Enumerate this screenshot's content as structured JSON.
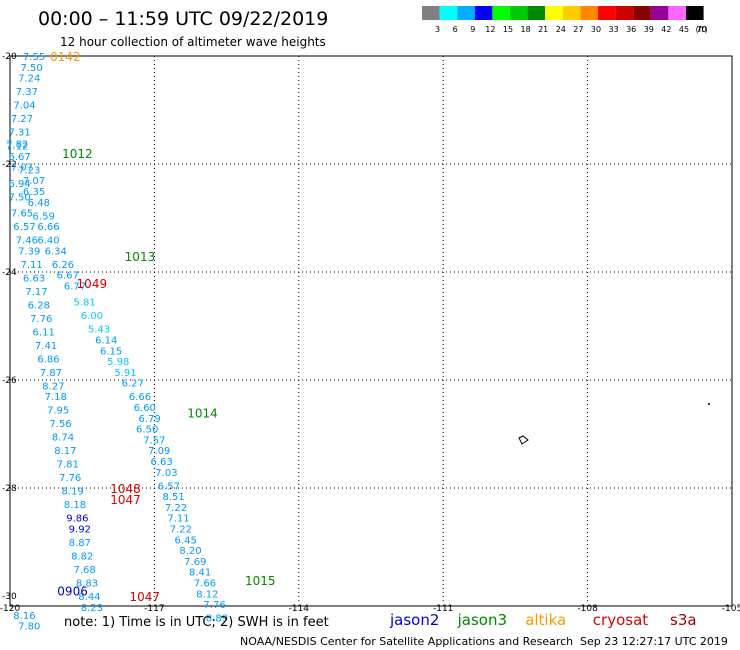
{
  "title": "00:00 – 11:59 UTC 09/22/2019",
  "subtitle": "12 hour collection of altimeter wave heights",
  "footer": {
    "note": "note:  1) Time is in UTC;  2) SWH is in feet",
    "credit": "NOAA/NESDIS Center for Satellite Applications and Research",
    "timestamp": "Sep 23 12:27:17 UTC 2019"
  },
  "colorbar": {
    "unit": "(ft)",
    "bins": [
      {
        "label": "3",
        "color": "#808080"
      },
      {
        "label": "6",
        "color": "#00ffff"
      },
      {
        "label": "9",
        "color": "#00b0ff"
      },
      {
        "label": "12",
        "color": "#0000ff"
      },
      {
        "label": "15",
        "color": "#00ff00"
      },
      {
        "label": "18",
        "color": "#00cc00"
      },
      {
        "label": "21",
        "color": "#008800"
      },
      {
        "label": "24",
        "color": "#ffff00"
      },
      {
        "label": "27",
        "color": "#ffcc00"
      },
      {
        "label": "30",
        "color": "#ff8800"
      },
      {
        "label": "33",
        "color": "#ff0000"
      },
      {
        "label": "36",
        "color": "#cc0000"
      },
      {
        "label": "39",
        "color": "#880000"
      },
      {
        "label": "42",
        "color": "#990099"
      },
      {
        "label": "45",
        "color": "#ff66ff"
      },
      {
        "label": "70",
        "color": "#000000"
      }
    ]
  },
  "satellites": [
    {
      "name": "jason2",
      "color": "#0000dd"
    },
    {
      "name": "jason3",
      "color": "#008800"
    },
    {
      "name": "altika",
      "color": "#ff9900"
    },
    {
      "name": "cryosat",
      "color": "#dd0000"
    },
    {
      "name": "s3a",
      "color": "#990000"
    }
  ],
  "map": {
    "lon_range": [
      -120,
      -105
    ],
    "lat_range": [
      -30,
      -20
    ],
    "lon_ticks": [
      "-120",
      "-117",
      "-114",
      "-111",
      "-108",
      "-105"
    ],
    "lat_ticks": [
      "-20",
      "-22",
      "-24",
      "-26",
      "-28",
      "-30"
    ],
    "gridlines": "dotted"
  },
  "pass_times": [
    {
      "time": "0142",
      "lon": -118.85,
      "lat": -20.0,
      "color": "#ff9900"
    },
    {
      "time": "1012",
      "lon": -118.6,
      "lat": -21.8,
      "color": "#008800"
    },
    {
      "time": "1013",
      "lon": -117.3,
      "lat": -23.7,
      "color": "#008800"
    },
    {
      "time": "1049",
      "lon": -118.3,
      "lat": -24.2,
      "color": "#dd0000"
    },
    {
      "time": "1014",
      "lon": -116.0,
      "lat": -26.6,
      "color": "#008800"
    },
    {
      "time": "1048",
      "lon": -117.6,
      "lat": -28.0,
      "color": "#dd0000"
    },
    {
      "time": "1047",
      "lon": -117.6,
      "lat": -28.2,
      "color": "#dd0000"
    },
    {
      "time": "1015",
      "lon": -114.8,
      "lat": -29.7,
      "color": "#008800"
    },
    {
      "time": "0906",
      "lon": -118.7,
      "lat": -29.9,
      "color": "#0000dd"
    },
    {
      "time": "1047",
      "lon": -117.2,
      "lat": -30.0,
      "color": "#dd0000"
    }
  ],
  "observations": [
    {
      "v": "7.55",
      "lon": -119.5,
      "lat": -20.0,
      "c": "#0099ff"
    },
    {
      "v": "7.50",
      "lon": -119.55,
      "lat": -20.2,
      "c": "#0099ff"
    },
    {
      "v": "7.24",
      "lon": -119.6,
      "lat": -20.4,
      "c": "#0099ff"
    },
    {
      "v": "7.37",
      "lon": -119.65,
      "lat": -20.65,
      "c": "#0099ff"
    },
    {
      "v": "7.04",
      "lon": -119.7,
      "lat": -20.9,
      "c": "#0099ff"
    },
    {
      "v": "7.27",
      "lon": -119.75,
      "lat": -21.15,
      "c": "#0099ff"
    },
    {
      "v": "7.31",
      "lon": -119.8,
      "lat": -21.4,
      "c": "#0099ff"
    },
    {
      "v": "7.82",
      "lon": -119.85,
      "lat": -21.62,
      "c": "#0099ff"
    },
    {
      "v": "7.12",
      "lon": -119.85,
      "lat": -21.66,
      "c": "#0099ff"
    },
    {
      "v": "6.67",
      "lon": -119.8,
      "lat": -21.85,
      "c": "#0099ff"
    },
    {
      "v": "7.07",
      "lon": -119.75,
      "lat": -22.05,
      "c": "#0099ff"
    },
    {
      "v": "7.23",
      "lon": -119.6,
      "lat": -22.1,
      "c": "#0099ff"
    },
    {
      "v": "7.07",
      "lon": -119.5,
      "lat": -22.3,
      "c": "#0099ff"
    },
    {
      "v": "6.94",
      "lon": -119.8,
      "lat": -22.35,
      "c": "#0099ff"
    },
    {
      "v": "6.35",
      "lon": -119.5,
      "lat": -22.5,
      "c": "#0099ff"
    },
    {
      "v": "7.50",
      "lon": -119.8,
      "lat": -22.6,
      "c": "#0099ff"
    },
    {
      "v": "6.48",
      "lon": -119.4,
      "lat": -22.7,
      "c": "#0099ff"
    },
    {
      "v": "7.65",
      "lon": -119.75,
      "lat": -22.9,
      "c": "#0099ff"
    },
    {
      "v": "6.59",
      "lon": -119.3,
      "lat": -22.95,
      "c": "#0099ff"
    },
    {
      "v": "6.57",
      "lon": -119.7,
      "lat": -23.15,
      "c": "#0099ff"
    },
    {
      "v": "6.66",
      "lon": -119.2,
      "lat": -23.15,
      "c": "#0099ff"
    },
    {
      "v": "7.46",
      "lon": -119.65,
      "lat": -23.4,
      "c": "#0099ff"
    },
    {
      "v": "6.40",
      "lon": -119.2,
      "lat": -23.4,
      "c": "#0099ff"
    },
    {
      "v": "7.39",
      "lon": -119.6,
      "lat": -23.6,
      "c": "#0099ff"
    },
    {
      "v": "6.34",
      "lon": -119.05,
      "lat": -23.6,
      "c": "#0099ff"
    },
    {
      "v": "7.11",
      "lon": -119.55,
      "lat": -23.85,
      "c": "#0099ff"
    },
    {
      "v": "6.26",
      "lon": -118.9,
      "lat": -23.85,
      "c": "#0099ff"
    },
    {
      "v": "6.63",
      "lon": -119.5,
      "lat": -24.1,
      "c": "#0099ff"
    },
    {
      "v": "6.67",
      "lon": -118.8,
      "lat": -24.05,
      "c": "#0099ff"
    },
    {
      "v": "6.77",
      "lon": -118.65,
      "lat": -24.25,
      "c": "#0099ff"
    },
    {
      "v": "7.17",
      "lon": -119.45,
      "lat": -24.35,
      "c": "#0099ff"
    },
    {
      "v": "6.28",
      "lon": -119.4,
      "lat": -24.6,
      "c": "#0099ff"
    },
    {
      "v": "5.81",
      "lon": -118.45,
      "lat": -24.55,
      "c": "#00ccff"
    },
    {
      "v": "7.76",
      "lon": -119.35,
      "lat": -24.85,
      "c": "#0099ff"
    },
    {
      "v": "6.00",
      "lon": -118.3,
      "lat": -24.8,
      "c": "#00ccff"
    },
    {
      "v": "6.11",
      "lon": -119.3,
      "lat": -25.1,
      "c": "#0099ff"
    },
    {
      "v": "5.43",
      "lon": -118.15,
      "lat": -25.05,
      "c": "#00ccff"
    },
    {
      "v": "7.41",
      "lon": -119.25,
      "lat": -25.35,
      "c": "#0099ff"
    },
    {
      "v": "6.14",
      "lon": -118.0,
      "lat": -25.25,
      "c": "#0099ff"
    },
    {
      "v": "6.86",
      "lon": -119.2,
      "lat": -25.6,
      "c": "#0099ff"
    },
    {
      "v": "6.15",
      "lon": -117.9,
      "lat": -25.45,
      "c": "#0099ff"
    },
    {
      "v": "7.87",
      "lon": -119.15,
      "lat": -25.85,
      "c": "#0099ff"
    },
    {
      "v": "5.98",
      "lon": -117.75,
      "lat": -25.65,
      "c": "#00ccff"
    },
    {
      "v": "5.91",
      "lon": -117.6,
      "lat": -25.85,
      "c": "#00ccff"
    },
    {
      "v": "8.27",
      "lon": -119.1,
      "lat": -26.1,
      "c": "#0099ff"
    },
    {
      "v": "6.27",
      "lon": -117.45,
      "lat": -26.05,
      "c": "#0099ff"
    },
    {
      "v": "7.18",
      "lon": -119.05,
      "lat": -26.3,
      "c": "#0099ff"
    },
    {
      "v": "6.66",
      "lon": -117.3,
      "lat": -26.3,
      "c": "#0099ff"
    },
    {
      "v": "7.95",
      "lon": -119.0,
      "lat": -26.55,
      "c": "#0099ff"
    },
    {
      "v": "6.60",
      "lon": -117.2,
      "lat": -26.5,
      "c": "#0099ff"
    },
    {
      "v": "7.56",
      "lon": -118.95,
      "lat": -26.8,
      "c": "#0099ff"
    },
    {
      "v": "6.79",
      "lon": -117.1,
      "lat": -26.7,
      "c": "#0099ff"
    },
    {
      "v": "6.50",
      "lon": -117.15,
      "lat": -26.9,
      "c": "#0099ff"
    },
    {
      "v": "8.74",
      "lon": -118.9,
      "lat": -27.05,
      "c": "#0099ff"
    },
    {
      "v": "7.57",
      "lon": -117.0,
      "lat": -27.1,
      "c": "#0099ff"
    },
    {
      "v": "8.17",
      "lon": -118.85,
      "lat": -27.3,
      "c": "#0099ff"
    },
    {
      "v": "7.09",
      "lon": -116.9,
      "lat": -27.3,
      "c": "#0099ff"
    },
    {
      "v": "7.81",
      "lon": -118.8,
      "lat": -27.55,
      "c": "#0099ff"
    },
    {
      "v": "6.63",
      "lon": -116.85,
      "lat": -27.5,
      "c": "#0099ff"
    },
    {
      "v": "7.76",
      "lon": -118.75,
      "lat": -27.8,
      "c": "#0099ff"
    },
    {
      "v": "7.03",
      "lon": -116.75,
      "lat": -27.7,
      "c": "#0099ff"
    },
    {
      "v": "8.19",
      "lon": -118.7,
      "lat": -28.05,
      "c": "#0099ff"
    },
    {
      "v": "6.57",
      "lon": -116.7,
      "lat": -27.95,
      "c": "#0099ff"
    },
    {
      "v": "8.51",
      "lon": -116.6,
      "lat": -28.15,
      "c": "#0099ff"
    },
    {
      "v": "8.18",
      "lon": -118.65,
      "lat": -28.3,
      "c": "#0099ff"
    },
    {
      "v": "7.22",
      "lon": -116.55,
      "lat": -28.35,
      "c": "#0099ff"
    },
    {
      "v": "9.86",
      "lon": -118.6,
      "lat": -28.55,
      "c": "#0000dd"
    },
    {
      "v": "7.11",
      "lon": -116.5,
      "lat": -28.55,
      "c": "#0099ff"
    },
    {
      "v": "9.92",
      "lon": -118.55,
      "lat": -28.75,
      "c": "#0000dd"
    },
    {
      "v": "7.22",
      "lon": -116.45,
      "lat": -28.75,
      "c": "#0099ff"
    },
    {
      "v": "8.87",
      "lon": -118.55,
      "lat": -29.0,
      "c": "#0099ff"
    },
    {
      "v": "6.45",
      "lon": -116.35,
      "lat": -28.95,
      "c": "#0099ff"
    },
    {
      "v": "8.82",
      "lon": -118.5,
      "lat": -29.25,
      "c": "#0099ff"
    },
    {
      "v": "8.20",
      "lon": -116.25,
      "lat": -29.15,
      "c": "#0099ff"
    },
    {
      "v": "7.68",
      "lon": -118.45,
      "lat": -29.5,
      "c": "#0099ff"
    },
    {
      "v": "7.69",
      "lon": -116.15,
      "lat": -29.35,
      "c": "#0099ff"
    },
    {
      "v": "8.41",
      "lon": -116.05,
      "lat": -29.55,
      "c": "#0099ff"
    },
    {
      "v": "8.83",
      "lon": -118.4,
      "lat": -29.75,
      "c": "#0099ff"
    },
    {
      "v": "7.66",
      "lon": -115.95,
      "lat": -29.75,
      "c": "#0099ff"
    },
    {
      "v": "8.44",
      "lon": -118.35,
      "lat": -30.0,
      "c": "#0099ff"
    },
    {
      "v": "8.12",
      "lon": -115.9,
      "lat": -29.95,
      "c": "#0099ff"
    },
    {
      "v": "8.23",
      "lon": -118.3,
      "lat": -30.2,
      "c": "#0099ff"
    },
    {
      "v": "7.76",
      "lon": -115.75,
      "lat": -30.15,
      "c": "#0099ff"
    },
    {
      "v": "8.16",
      "lon": -119.7,
      "lat": -30.35,
      "c": "#0099ff"
    },
    {
      "v": "8.89",
      "lon": -115.7,
      "lat": -30.4,
      "c": "#0099ff"
    },
    {
      "v": "7.80",
      "lon": -119.6,
      "lat": -30.55,
      "c": "#0099ff"
    }
  ]
}
